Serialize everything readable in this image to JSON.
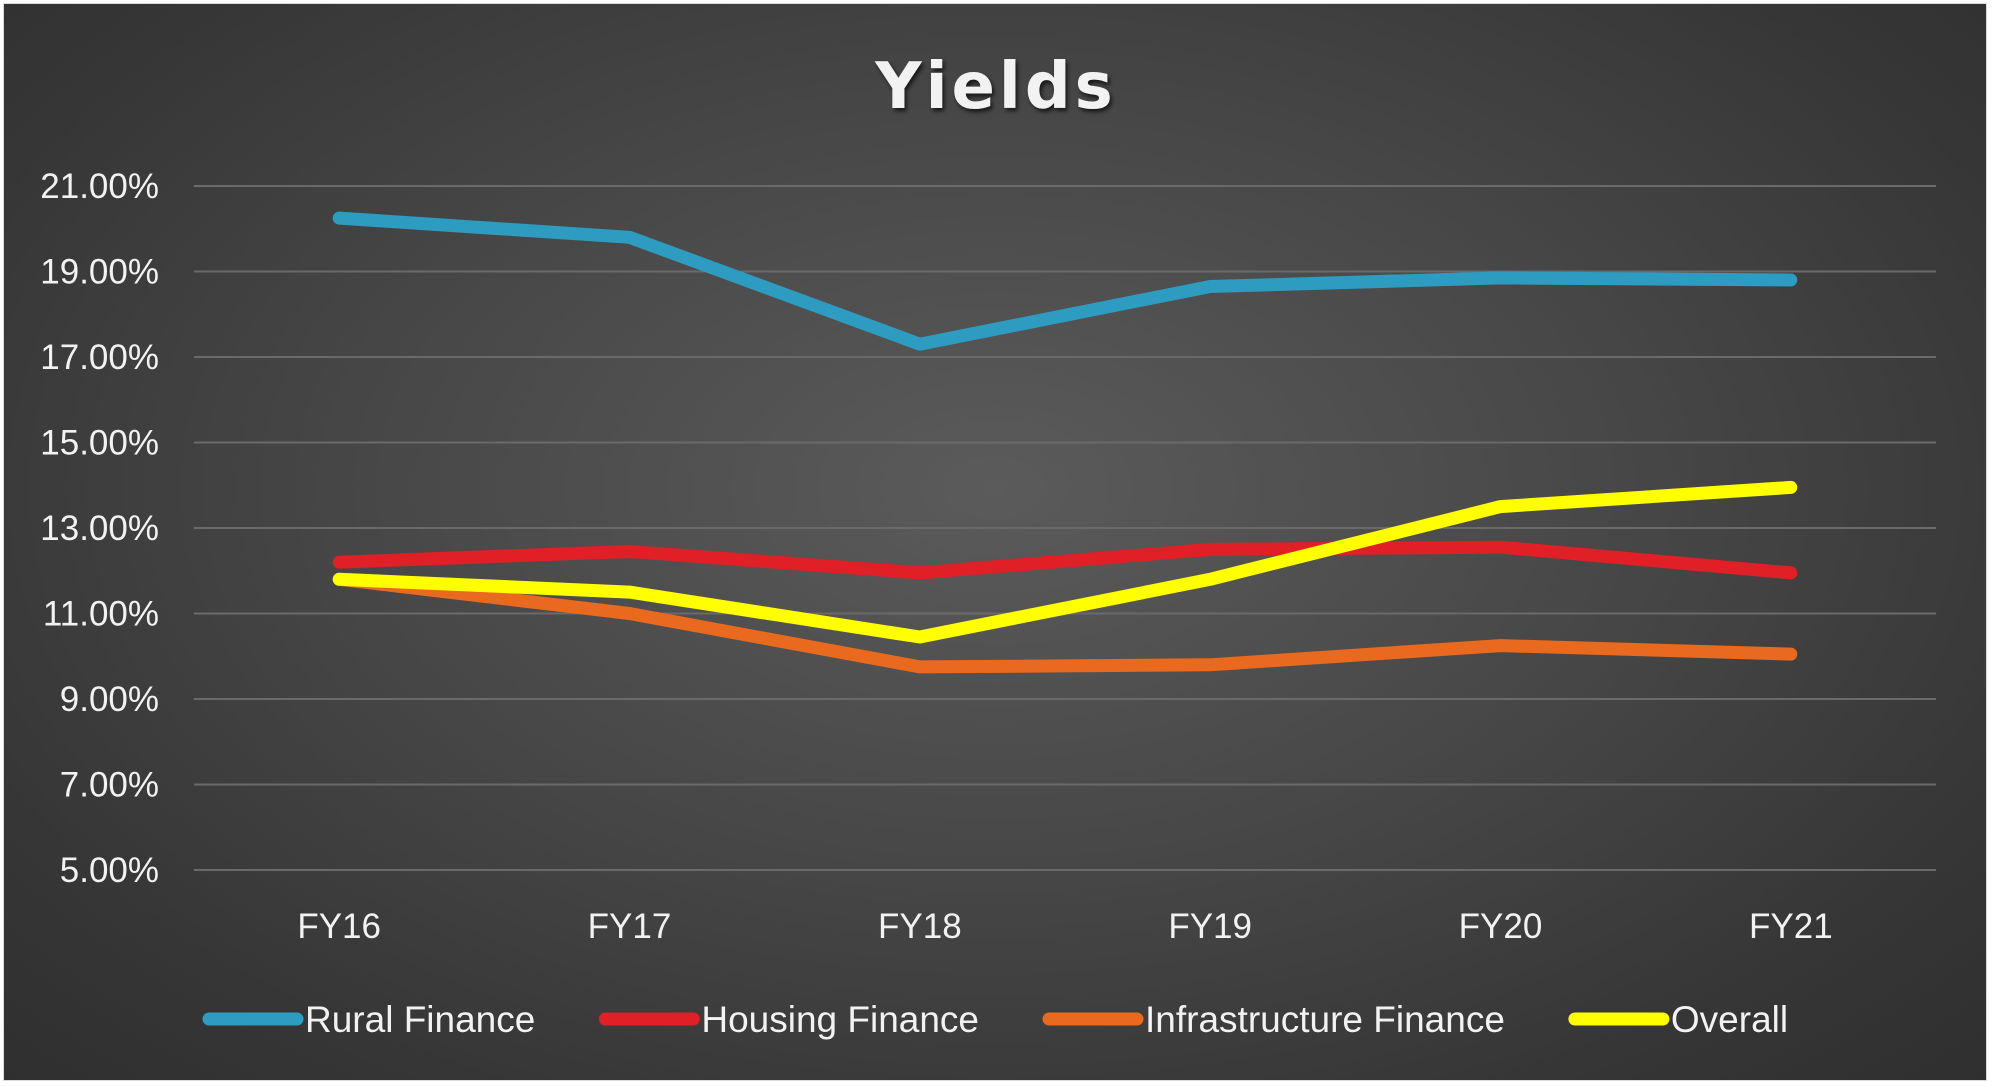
{
  "chart_data": {
    "type": "line",
    "title": "Yields",
    "xlabel": "",
    "ylabel": "",
    "categories": [
      "FY16",
      "FY17",
      "FY18",
      "FY19",
      "FY20",
      "FY21"
    ],
    "ylim": [
      5,
      21
    ],
    "yticks": [
      5,
      7,
      9,
      11,
      13,
      15,
      17,
      19,
      21
    ],
    "ytick_labels": [
      "5.00%",
      "7.00%",
      "9.00%",
      "11.00%",
      "13.00%",
      "15.00%",
      "17.00%",
      "19.00%",
      "21.00%"
    ],
    "grid": true,
    "legend_position": "bottom",
    "background_color": "#404040",
    "series": [
      {
        "name": "Rural Finance",
        "color": "#2e9cc0",
        "values": [
          20.25,
          19.8,
          17.3,
          18.65,
          18.85,
          18.8
        ]
      },
      {
        "name": "Housing Finance",
        "color": "#e01f26",
        "values": [
          12.2,
          12.45,
          11.95,
          12.5,
          12.55,
          11.95
        ]
      },
      {
        "name": "Infrastructure Finance",
        "color": "#e96a1e",
        "values": [
          11.8,
          11.0,
          9.75,
          9.8,
          10.25,
          10.05
        ]
      },
      {
        "name": "Overall",
        "color": "#ffff00",
        "values": [
          11.8,
          11.5,
          10.45,
          11.8,
          13.5,
          13.95
        ]
      }
    ]
  }
}
